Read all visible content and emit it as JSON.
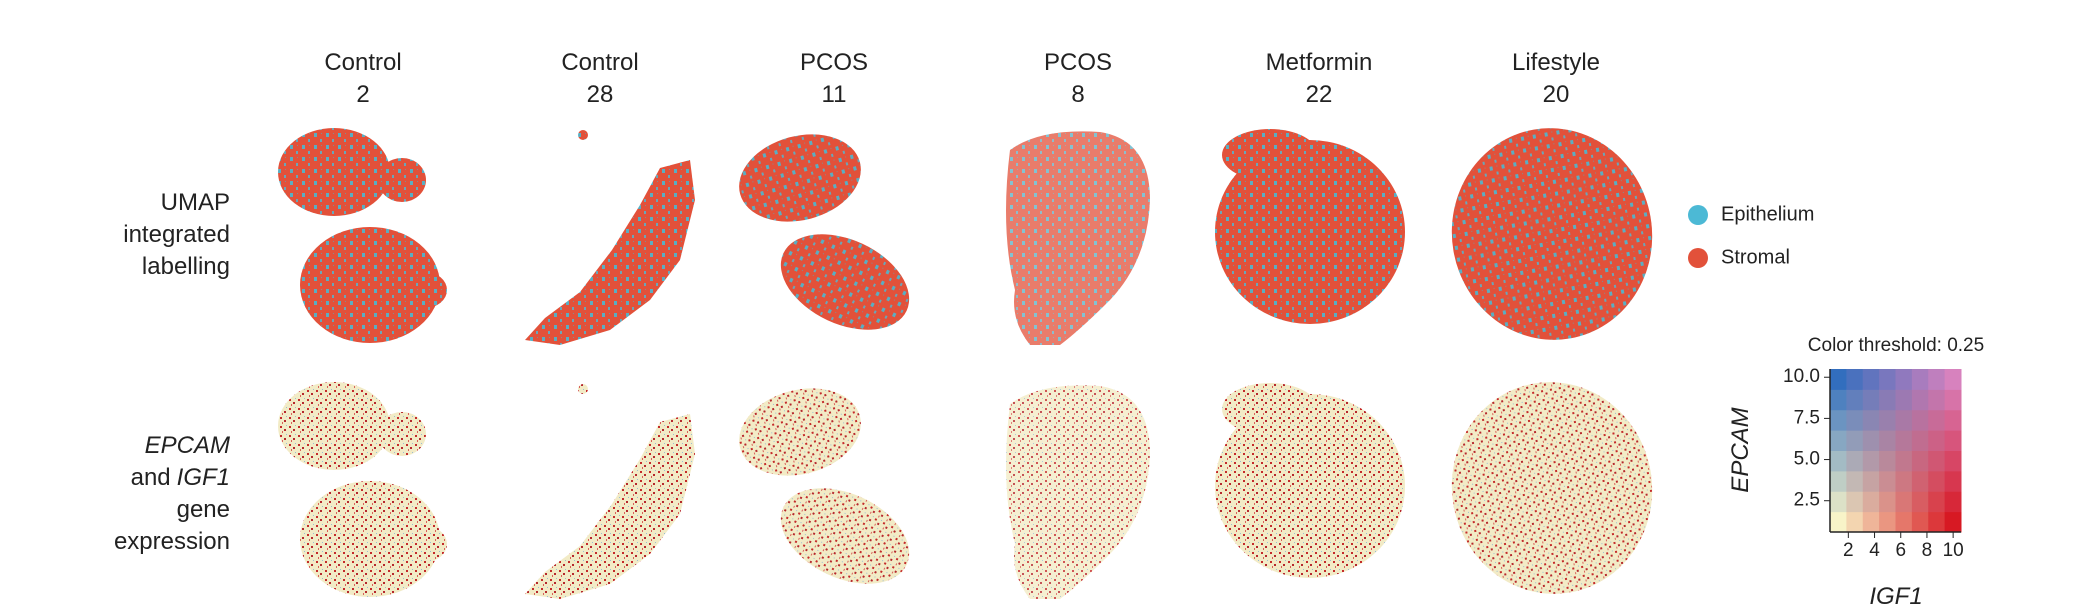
{
  "panels": {
    "columns": [
      {
        "group": "Control",
        "id": "2"
      },
      {
        "group": "Control",
        "id": "28"
      },
      {
        "group": "PCOS",
        "id": "11"
      },
      {
        "group": "PCOS",
        "id": "8"
      },
      {
        "group": "Metformin",
        "id": "22"
      },
      {
        "group": "Lifestyle",
        "id": "20"
      }
    ],
    "row_umap": [
      "UMAP",
      "integrated",
      "labelling"
    ],
    "row_expression": {
      "gene_a": "EPCAM",
      "joiner": "and",
      "gene_b": "IGF1",
      "line3": "gene",
      "line4": "expression"
    }
  },
  "legend": [
    {
      "label": "Epithelium",
      "color": "#4cb9d5"
    },
    {
      "label": "Stromal",
      "color": "#e2513a"
    }
  ],
  "colormap": {
    "title": "Color threshold: 0.25",
    "xlabel": "IGF1",
    "ylabel": "EPCAM",
    "xlim": [
      0.6,
      10.6
    ],
    "ylim": [
      0.6,
      10.5
    ],
    "xticks": [
      2,
      4,
      6,
      8,
      10
    ],
    "yticks": [
      {
        "value": 10,
        "label": "10.0"
      },
      7.5,
      {
        "value": 5,
        "label": "5.0"
      },
      2.5
    ]
  }
}
